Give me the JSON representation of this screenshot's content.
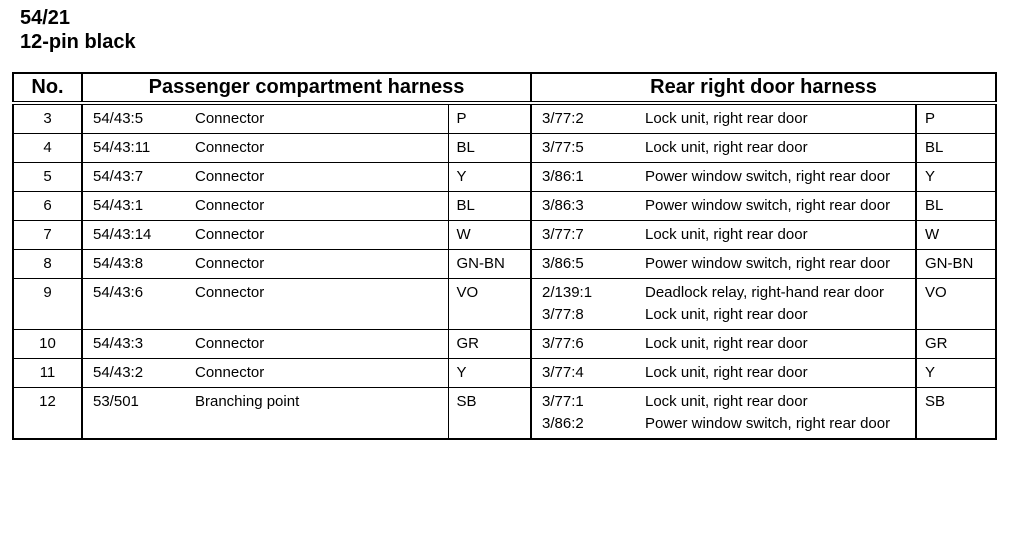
{
  "title": {
    "line1": "54/21",
    "line2": "12-pin black"
  },
  "headers": {
    "no": "No.",
    "passenger": "Passenger compartment harness",
    "rear": "Rear right door harness"
  },
  "rows": [
    {
      "no": "3",
      "pc_code": "54/43:5",
      "pc_name": "Connector",
      "pc_color": "P",
      "rear": [
        {
          "code": "3/77:2",
          "desc": "Lock unit, right rear door"
        }
      ],
      "rear_color": "P"
    },
    {
      "no": "4",
      "pc_code": "54/43:11",
      "pc_name": "Connector",
      "pc_color": "BL",
      "rear": [
        {
          "code": "3/77:5",
          "desc": "Lock unit, right rear door"
        }
      ],
      "rear_color": "BL"
    },
    {
      "no": "5",
      "pc_code": "54/43:7",
      "pc_name": "Connector",
      "pc_color": "Y",
      "rear": [
        {
          "code": "3/86:1",
          "desc": "Power window switch, right rear door"
        }
      ],
      "rear_color": "Y"
    },
    {
      "no": "6",
      "pc_code": "54/43:1",
      "pc_name": "Connector",
      "pc_color": "BL",
      "rear": [
        {
          "code": "3/86:3",
          "desc": "Power window switch, right rear door"
        }
      ],
      "rear_color": "BL"
    },
    {
      "no": "7",
      "pc_code": "54/43:14",
      "pc_name": "Connector",
      "pc_color": "W",
      "rear": [
        {
          "code": "3/77:7",
          "desc": "Lock unit, right rear door"
        }
      ],
      "rear_color": "W"
    },
    {
      "no": "8",
      "pc_code": "54/43:8",
      "pc_name": "Connector",
      "pc_color": "GN-BN",
      "rear": [
        {
          "code": "3/86:5",
          "desc": "Power window switch, right rear door"
        }
      ],
      "rear_color": "GN-BN"
    },
    {
      "no": "9",
      "pc_code": "54/43:6",
      "pc_name": "Connector",
      "pc_color": "VO",
      "rear": [
        {
          "code": "2/139:1",
          "desc": "Deadlock relay, right-hand rear door"
        },
        {
          "code": "3/77:8",
          "desc": "Lock unit, right rear door"
        }
      ],
      "rear_color": "VO"
    },
    {
      "no": "10",
      "pc_code": "54/43:3",
      "pc_name": "Connector",
      "pc_color": "GR",
      "rear": [
        {
          "code": "3/77:6",
          "desc": "Lock unit, right rear door"
        }
      ],
      "rear_color": "GR"
    },
    {
      "no": "11",
      "pc_code": "54/43:2",
      "pc_name": "Connector",
      "pc_color": "Y",
      "rear": [
        {
          "code": "3/77:4",
          "desc": "Lock unit, right rear door"
        }
      ],
      "rear_color": "Y"
    },
    {
      "no": "12",
      "pc_code": "53/501",
      "pc_name": "Branching point",
      "pc_color": "SB",
      "rear": [
        {
          "code": "3/77:1",
          "desc": "Lock unit, right rear door"
        },
        {
          "code": "3/86:2",
          "desc": "Power window switch, right rear door"
        }
      ],
      "rear_color": "SB"
    }
  ]
}
